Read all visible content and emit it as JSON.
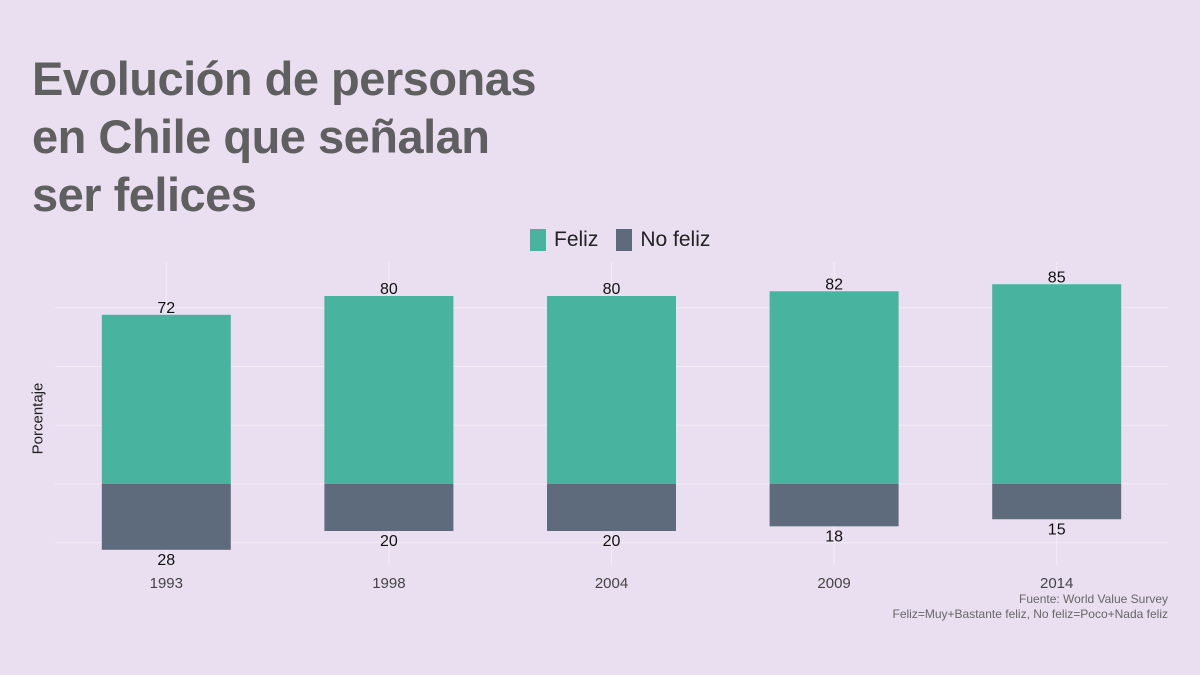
{
  "title_lines": [
    "Evolución de personas",
    "en Chile que señalan",
    "ser felices"
  ],
  "caption": {
    "source": "Fuente: World Value Survey",
    "note": "Feliz=Muy+Bastante feliz, No feliz=Poco+Nada feliz"
  },
  "colors": {
    "feliz": "#48b39e",
    "no_feliz": "#5e6b7d",
    "background": "#eadff0"
  },
  "chart_data": {
    "type": "bar",
    "stacked": "diverging",
    "title": "Evolución de personas en Chile que señalan ser felices",
    "xlabel": "",
    "ylabel": "Porcentaje",
    "categories": [
      "1993",
      "1998",
      "2004",
      "2009",
      "2014"
    ],
    "series": [
      {
        "name": "Feliz",
        "values": [
          72,
          80,
          80,
          82,
          85
        ],
        "color": "#48b39e"
      },
      {
        "name": "No feliz",
        "values": [
          28,
          20,
          20,
          18,
          15
        ],
        "color": "#5e6b7d",
        "direction": "negative"
      }
    ],
    "ylim": [
      -32,
      96
    ],
    "y_tick_labels_shown": false,
    "grid": true,
    "legend_position": "top"
  }
}
